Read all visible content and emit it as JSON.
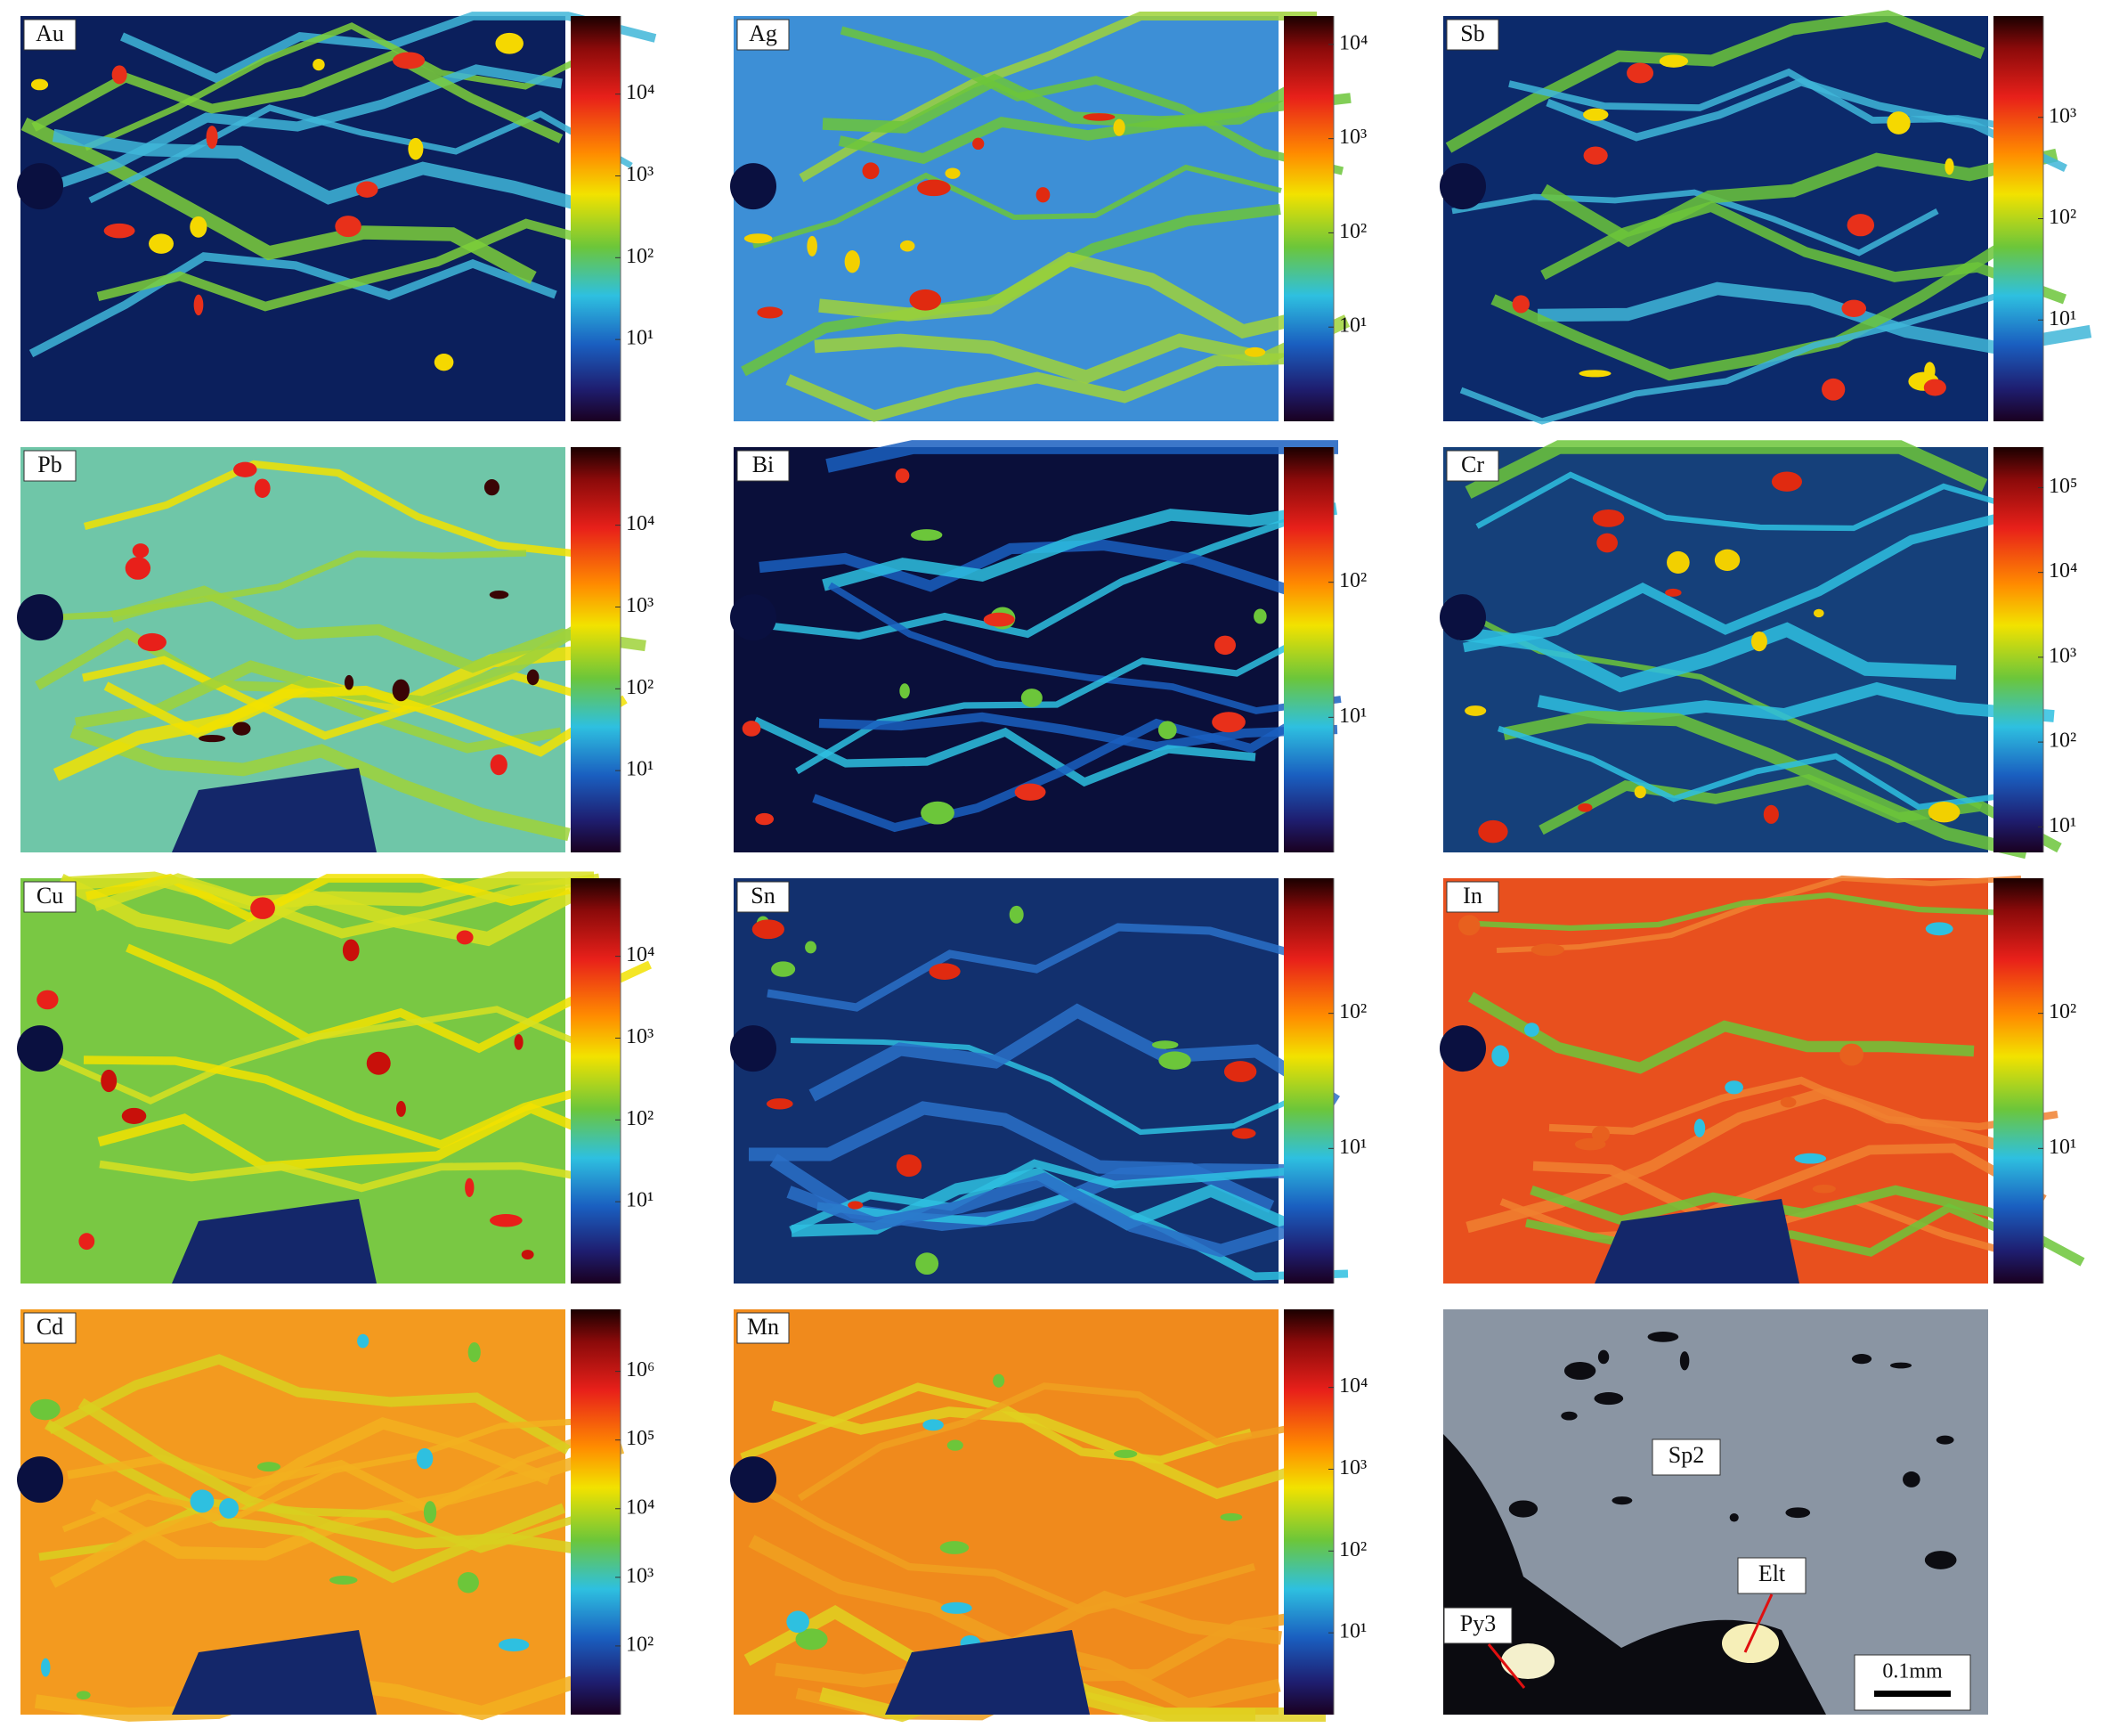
{
  "panels": [
    {
      "label": "Au",
      "clim": [
        1,
        90000
      ],
      "ticks": [
        {
          "value": 10,
          "label": "10¹"
        },
        {
          "value": 100,
          "label": "10²"
        },
        {
          "value": 1000,
          "label": "10³"
        },
        {
          "value": 10000,
          "label": "10⁴"
        }
      ]
    },
    {
      "label": "Ag",
      "clim": [
        1,
        20000
      ],
      "ticks": [
        {
          "value": 10,
          "label": "10¹"
        },
        {
          "value": 100,
          "label": "10²"
        },
        {
          "value": 1000,
          "label": "10³"
        },
        {
          "value": 10000,
          "label": "10⁴"
        }
      ]
    },
    {
      "label": "Sb",
      "clim": [
        1,
        10000
      ],
      "ticks": [
        {
          "value": 10,
          "label": "10¹"
        },
        {
          "value": 100,
          "label": "10²"
        },
        {
          "value": 1000,
          "label": "10³"
        }
      ]
    },
    {
      "label": "Pb",
      "clim": [
        1,
        90000
      ],
      "ticks": [
        {
          "value": 10,
          "label": "10¹"
        },
        {
          "value": 100,
          "label": "10²"
        },
        {
          "value": 1000,
          "label": "10³"
        },
        {
          "value": 10000,
          "label": "10⁴"
        }
      ]
    },
    {
      "label": "Bi",
      "clim": [
        1,
        1000
      ],
      "ticks": [
        {
          "value": 10,
          "label": "10¹"
        },
        {
          "value": 100,
          "label": "10²"
        }
      ]
    },
    {
      "label": "Cr",
      "clim": [
        5,
        300000
      ],
      "ticks": [
        {
          "value": 10,
          "label": "10¹"
        },
        {
          "value": 100,
          "label": "10²"
        },
        {
          "value": 1000,
          "label": "10³"
        },
        {
          "value": 10000,
          "label": "10⁴"
        },
        {
          "value": 100000,
          "label": "10⁵"
        }
      ]
    },
    {
      "label": "Cu",
      "clim": [
        1,
        90000
      ],
      "ticks": [
        {
          "value": 10,
          "label": "10¹"
        },
        {
          "value": 100,
          "label": "10²"
        },
        {
          "value": 1000,
          "label": "10³"
        },
        {
          "value": 10000,
          "label": "10⁴"
        }
      ]
    },
    {
      "label": "Sn",
      "clim": [
        1,
        1000
      ],
      "ticks": [
        {
          "value": 10,
          "label": "10¹"
        },
        {
          "value": 100,
          "label": "10²"
        }
      ]
    },
    {
      "label": "In",
      "clim": [
        1,
        1000
      ],
      "ticks": [
        {
          "value": 10,
          "label": "10¹"
        },
        {
          "value": 100,
          "label": "10²"
        }
      ]
    },
    {
      "label": "Cd",
      "clim": [
        10,
        8000000
      ],
      "ticks": [
        {
          "value": 100,
          "label": "10²"
        },
        {
          "value": 1000,
          "label": "10³"
        },
        {
          "value": 10000,
          "label": "10⁴"
        },
        {
          "value": 100000,
          "label": "10⁵"
        },
        {
          "value": 1000000,
          "label": "10⁶"
        }
      ]
    },
    {
      "label": "Mn",
      "clim": [
        1,
        90000
      ],
      "ticks": [
        {
          "value": 10,
          "label": "10¹"
        },
        {
          "value": 100,
          "label": "10²"
        },
        {
          "value": 1000,
          "label": "10³"
        },
        {
          "value": 10000,
          "label": "10⁴"
        }
      ]
    }
  ],
  "micrograph": {
    "labels": [
      "Sp2",
      "Elt",
      "Py3"
    ],
    "scale_bar": "0.1mm"
  }
}
